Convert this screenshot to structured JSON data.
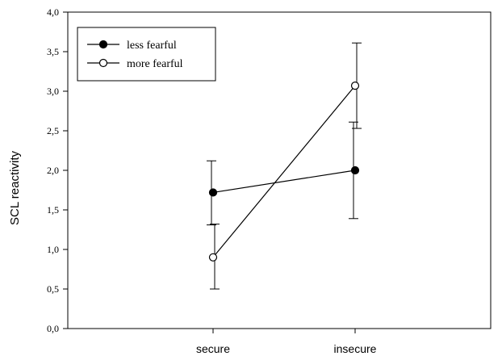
{
  "chart_data": {
    "type": "line",
    "categories": [
      "secure",
      "insecure"
    ],
    "ylabel": "SCL reactivity",
    "xlabel": "",
    "ylim": [
      0,
      4
    ],
    "yticks": [
      0,
      0.5,
      1,
      1.5,
      2,
      2.5,
      3,
      3.5,
      4
    ],
    "ytick_labels": [
      "0,0",
      "0,5",
      "1,0",
      "1,5",
      "2,0",
      "2,5",
      "3,0",
      "3,5",
      "4,0"
    ],
    "grid": false,
    "legend_position": "top-left",
    "series": [
      {
        "name": "less fearful",
        "marker": "filled-circle",
        "values": [
          1.72,
          2.0
        ],
        "error_low": [
          1.31,
          1.39
        ],
        "error_high": [
          2.12,
          2.61
        ]
      },
      {
        "name": "more fearful",
        "marker": "open-circle",
        "values": [
          0.9,
          3.07
        ],
        "error_low": [
          0.5,
          2.53
        ],
        "error_high": [
          1.32,
          3.61
        ]
      }
    ]
  }
}
